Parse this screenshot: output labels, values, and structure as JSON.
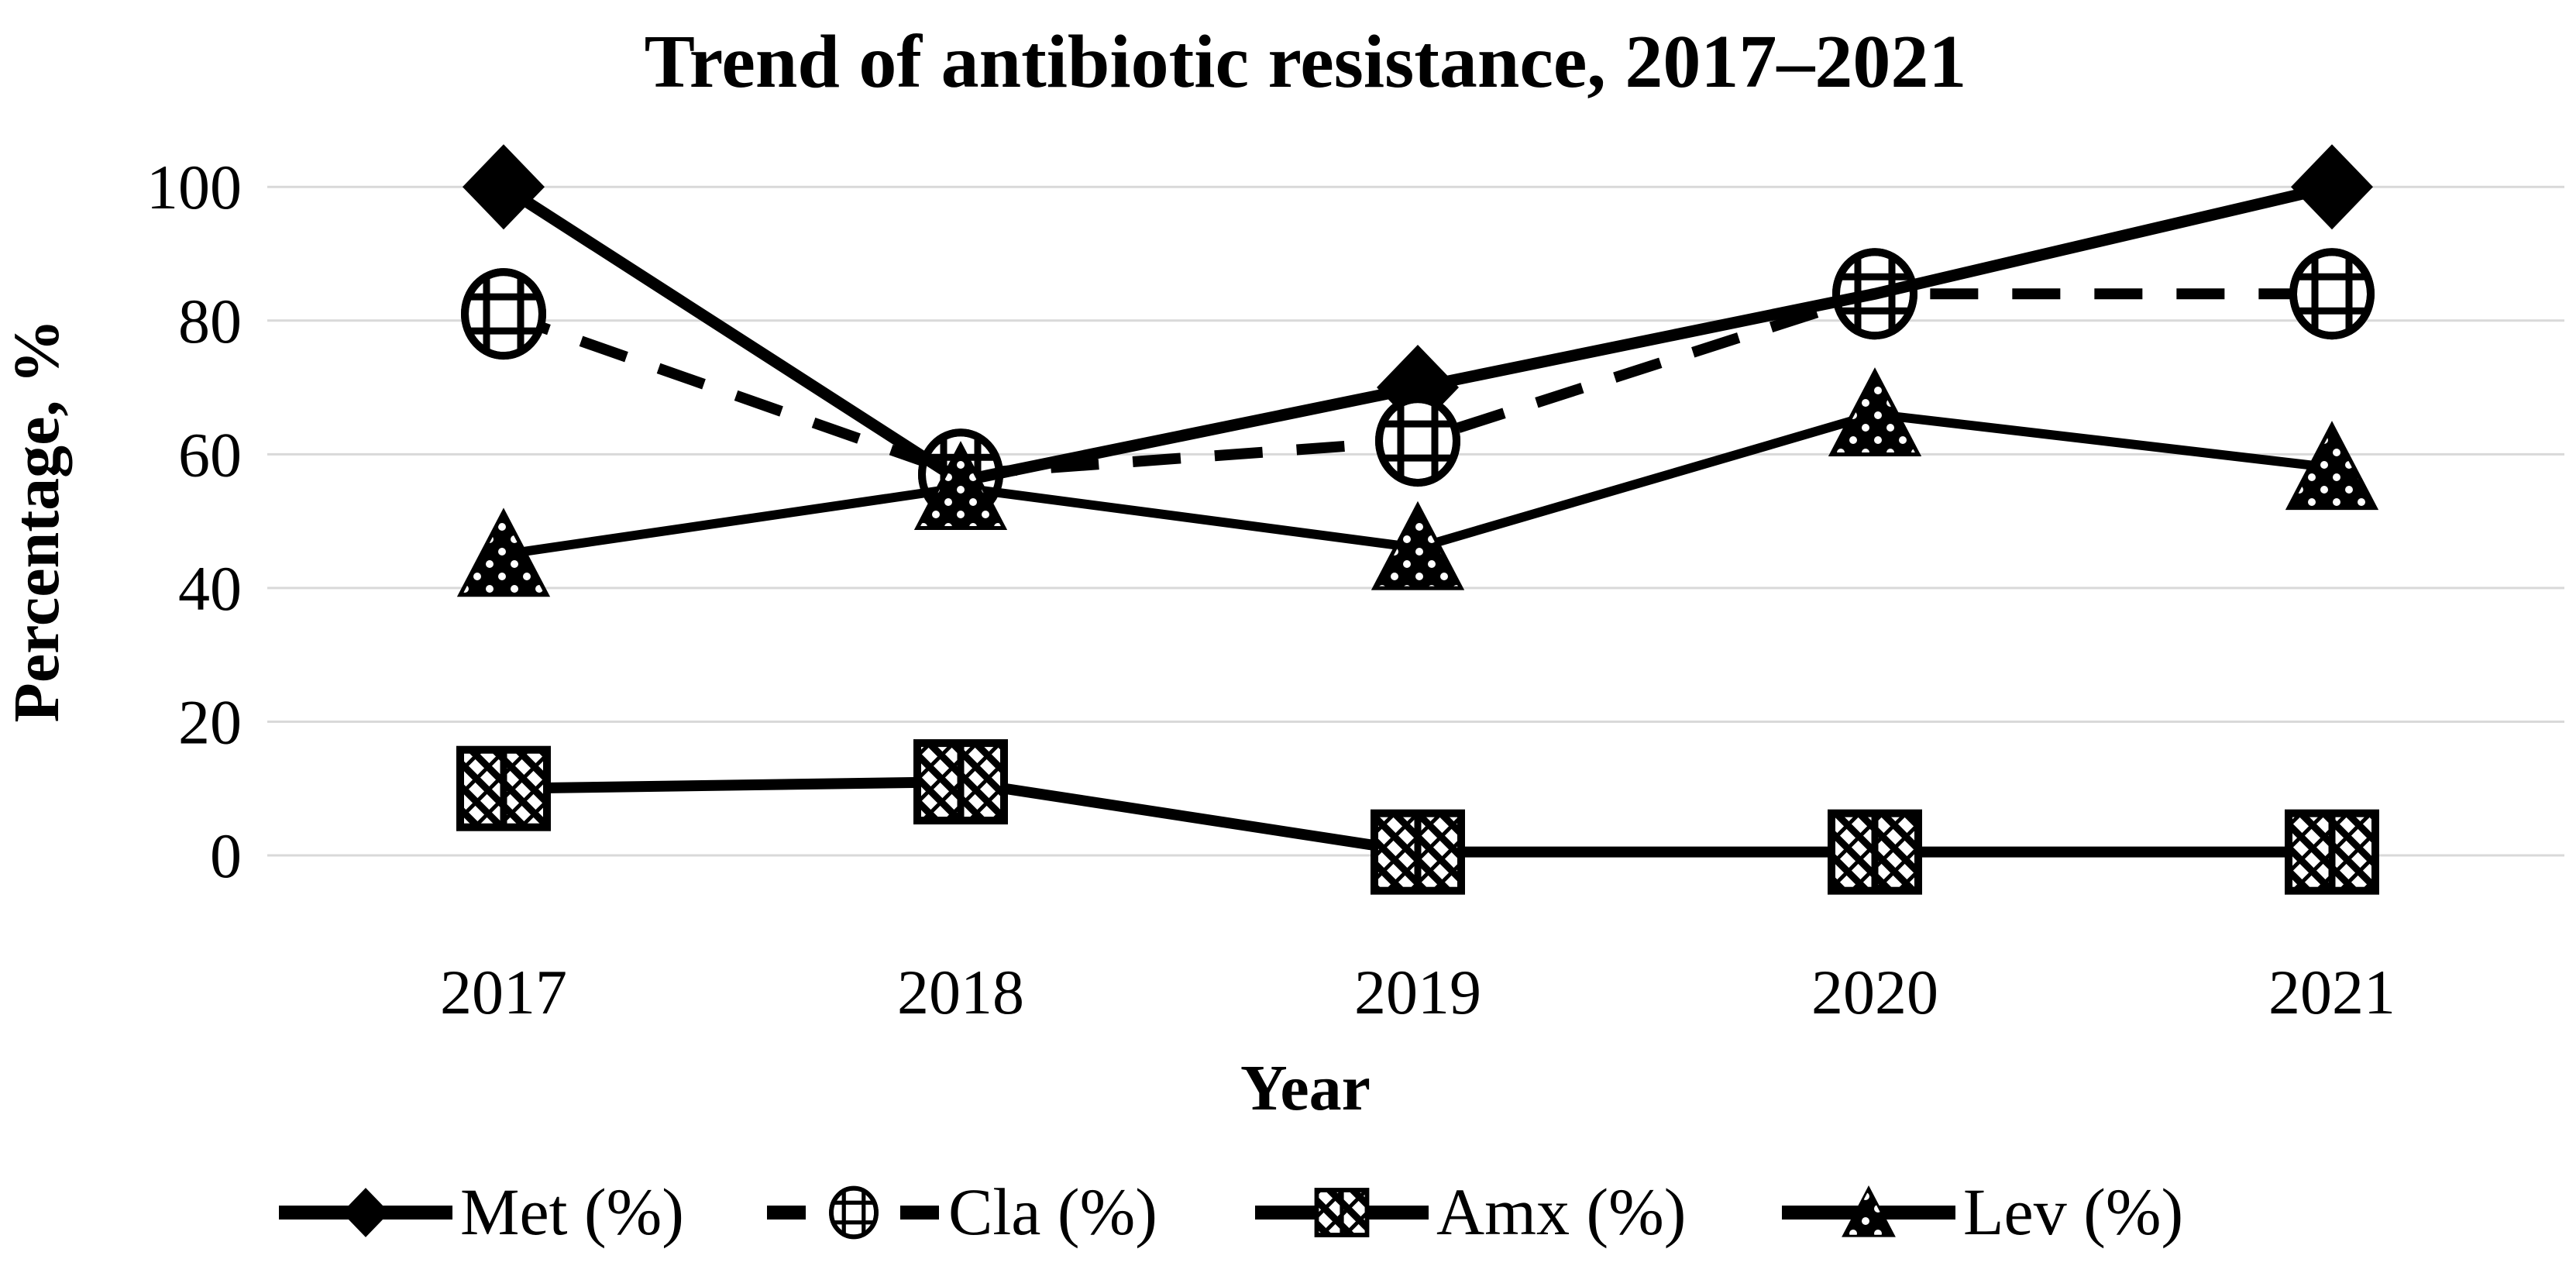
{
  "chart_data": {
    "type": "line",
    "title": "Trend of antibiotic resistance, 2017–2021",
    "xlabel": "Year",
    "ylabel": "Percentage, %",
    "categories": [
      "2017",
      "2018",
      "2019",
      "2020",
      "2021"
    ],
    "ylim": [
      0,
      100
    ],
    "yticks": [
      0,
      20,
      40,
      60,
      80,
      100
    ],
    "grid": "horizontal-only",
    "legend_position": "bottom",
    "series": [
      {
        "name": "Met (%)",
        "line": "solid",
        "marker": "filled-diamond",
        "values": [
          100,
          56,
          70,
          84,
          100
        ]
      },
      {
        "name": "Cla (%)",
        "line": "dashed",
        "marker": "open-circle-grid",
        "values": [
          81,
          57,
          62,
          84,
          84
        ]
      },
      {
        "name": "Amx (%)",
        "line": "solid",
        "marker": "hatched-square",
        "values": [
          10,
          11,
          0.5,
          0.5,
          0.5
        ]
      },
      {
        "name": "Lev (%)",
        "line": "solid",
        "marker": "dotted-triangle",
        "values": [
          45,
          55,
          46,
          66,
          58
        ]
      }
    ],
    "colors": {
      "series": "#000000",
      "gridline": "#d9d9d9",
      "background": "#ffffff",
      "text": "#000000"
    }
  }
}
